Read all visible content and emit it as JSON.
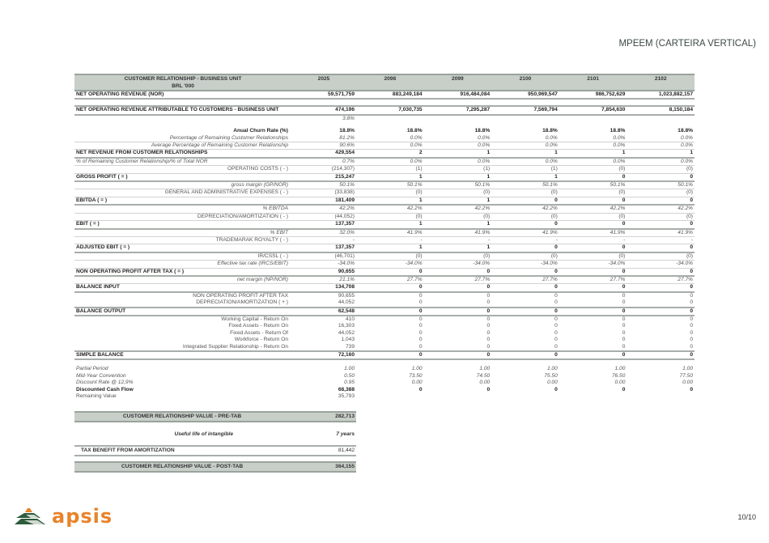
{
  "header": {
    "title": "MPEEM (CARTEIRA VERTICAL)",
    "page": "10/10"
  },
  "logo": {
    "text": "apsis",
    "colors": {
      "orange": "#e8832a",
      "green": "#2e5b3c"
    }
  },
  "table": {
    "head_label": "CUSTOMER RELATIONSHIP - BUSINESS UNIT",
    "head_sublabel": "BRL '000",
    "years": [
      "2025",
      "2098",
      "2099",
      "2100",
      "2101",
      "2102"
    ],
    "rows": [
      {
        "style": "bold",
        "label": "NET OPERATING REVENUE (NOR)",
        "values": [
          "59,571,759",
          "883,249,184",
          "916,484,084",
          "950,969,547",
          "986,752,629",
          "1,023,882,157"
        ]
      },
      {
        "style": "gap"
      },
      {
        "style": "bold topline",
        "label": "NET OPERATING REVENUE ATTRIBUTABLE TO CUSTOMERS - BUSINESS UNIT",
        "values": [
          "474,196",
          "7,030,735",
          "7,295,287",
          "7,569,794",
          "7,854,630",
          "8,150,184"
        ]
      },
      {
        "style": "ital",
        "label": "",
        "values": [
          "3.8%",
          "",
          "",
          "",
          "",
          ""
        ]
      },
      {
        "style": "gap"
      },
      {
        "style": "rbold",
        "label": "Anual Churn Rate (%)",
        "values": [
          "18.8%",
          "18.8%",
          "18.8%",
          "18.8%",
          "18.8%",
          "18.8%"
        ]
      },
      {
        "style": "subi",
        "label": "Percentage of Remaining Customer Relationships",
        "values": [
          "81.2%",
          "0.0%",
          "0.0%",
          "0.0%",
          "0.0%",
          "0.0%"
        ]
      },
      {
        "style": "subi",
        "label": "Average Percentage of Remaining Customer Relationship",
        "values": [
          "90.6%",
          "0.0%",
          "0.0%",
          "0.0%",
          "0.0%",
          "0.0%"
        ]
      },
      {
        "style": "bold",
        "label": "NET REVENUE FROM CUSTOMER RELATIONSHIPS",
        "values": [
          "429,554",
          "2",
          "1",
          "1",
          "1",
          "1"
        ]
      },
      {
        "style": "subi left",
        "label": "% of Remaining Customer Relationship/% of Total NOR",
        "values": [
          "0.7%",
          "0.0%",
          "0.0%",
          "0.0%",
          "0.0%",
          "0.0%"
        ]
      },
      {
        "style": "sub",
        "label": "OPERATING COSTS ( - )",
        "values": [
          "(214,307)",
          "(1)",
          "(1)",
          "(1)",
          "(0)",
          "(0)"
        ]
      },
      {
        "style": "bold",
        "label": "GROSS PROFIT ( = )",
        "values": [
          "215,247",
          "1",
          "1",
          "1",
          "0",
          "0"
        ]
      },
      {
        "style": "subi",
        "label": "gross margin (GP/NOR)",
        "values": [
          "50.1%",
          "50.1%",
          "50.1%",
          "50.1%",
          "50.1%",
          "50.1%"
        ]
      },
      {
        "style": "sub",
        "label": "GENERAL AND ADMINISTRATIVE EXPENSES ( - )",
        "values": [
          "(33,838)",
          "(0)",
          "(0)",
          "(0)",
          "(0)",
          "(0)"
        ]
      },
      {
        "style": "bold",
        "label": "EBITDA ( = )",
        "values": [
          "181,409",
          "1",
          "1",
          "0",
          "0",
          "0"
        ]
      },
      {
        "style": "subi",
        "label": "% EBITDA",
        "values": [
          "42.2%",
          "42.2%",
          "42.2%",
          "42.2%",
          "42.2%",
          "42.2%"
        ]
      },
      {
        "style": "sub",
        "label": "DEPRECIATION/AMORTIZATION ( - )",
        "values": [
          "(44,052)",
          "(0)",
          "(0)",
          "(0)",
          "(0)",
          "(0)"
        ]
      },
      {
        "style": "bold",
        "label": "EBIT ( = )",
        "values": [
          "137,357",
          "1",
          "1",
          "0",
          "0",
          "0"
        ]
      },
      {
        "style": "subi",
        "label": "% EBIT",
        "values": [
          "32.0%",
          "41.9%",
          "41.9%",
          "41.9%",
          "41.9%",
          "41.9%"
        ]
      },
      {
        "style": "sub",
        "label": "TRADEMARAK ROYALTY ( - )",
        "values": [
          "-",
          "-",
          "-",
          "-",
          "-",
          "-"
        ]
      },
      {
        "style": "bold",
        "label": "ADJUSTED EBIT ( = )",
        "values": [
          "137,357",
          "1",
          "1",
          "0",
          "0",
          "0"
        ]
      },
      {
        "style": "sub",
        "label": "IR/CSSL ( - )",
        "values": [
          "(46,701)",
          "(0)",
          "(0)",
          "(0)",
          "(0)",
          "(0)"
        ]
      },
      {
        "style": "subi",
        "label": "Effective tax rate (IRCS/EBIT)",
        "values": [
          "-34.0%",
          "-34.0%",
          "-34.0%",
          "-34.0%",
          "-34.0%",
          "-34.0%"
        ]
      },
      {
        "style": "bold",
        "label": "NON OPERATING PROFIT AFTER TAX ( = )",
        "values": [
          "90,655",
          "0",
          "0",
          "0",
          "0",
          "0"
        ]
      },
      {
        "style": "subi",
        "label": "net margin (NP/NOR)",
        "values": [
          "21.1%",
          "27.7%",
          "27.7%",
          "27.7%",
          "27.7%",
          "27.7%"
        ]
      },
      {
        "style": "bold",
        "label": "BALANCE INPUT",
        "values": [
          "134,708",
          "0",
          "0",
          "0",
          "0",
          "0"
        ]
      },
      {
        "style": "sub nb",
        "label": "NON OPERATING PROFIT AFTER TAX",
        "values": [
          "90,655",
          "0",
          "0",
          "0",
          "0",
          "0"
        ]
      },
      {
        "style": "sub nb",
        "label": "DEPRECIATION/AMORTIZATION ( + )",
        "values": [
          "44,052",
          "0",
          "0",
          "0",
          "0",
          "0"
        ]
      },
      {
        "style": "bold topline",
        "label": "BALANCE OUTPUT",
        "values": [
          "62,548",
          "0",
          "0",
          "0",
          "0",
          "0"
        ]
      },
      {
        "style": "sub nb",
        "label": "Working Capital - Return On",
        "values": [
          "410",
          "0",
          "0",
          "0",
          "0",
          "0"
        ]
      },
      {
        "style": "sub nb",
        "label": "Fixed Assets - Return On",
        "values": [
          "16,303",
          "0",
          "0",
          "0",
          "0",
          "0"
        ]
      },
      {
        "style": "sub nb",
        "label": "Fixed Assets - Return Of",
        "values": [
          "44,052",
          "0",
          "0",
          "0",
          "0",
          "0"
        ]
      },
      {
        "style": "sub nb",
        "label": "Workforce - Return On",
        "values": [
          "1,043",
          "0",
          "0",
          "0",
          "0",
          "0"
        ]
      },
      {
        "style": "sub nb",
        "label": "Integrated Supplier Relationship - Return On",
        "values": [
          "739",
          "0",
          "0",
          "0",
          "0",
          "0"
        ]
      },
      {
        "style": "bold topline",
        "label": "SIMPLE BALANCE",
        "values": [
          "72,160",
          "0",
          "0",
          "0",
          "0",
          "0"
        ]
      },
      {
        "style": "gap"
      },
      {
        "style": "ital",
        "label": "Partial Period",
        "values": [
          "1.00",
          "1.00",
          "1.00",
          "1.00",
          "1.00",
          "1.00"
        ]
      },
      {
        "style": "ital",
        "label": "Mid-Year Convention",
        "values": [
          "0.50",
          "73.50",
          "74.50",
          "75.50",
          "76.50",
          "77.50"
        ]
      },
      {
        "style": "ital",
        "label": "Discount Rate @ 12,9%",
        "values": [
          "0.95",
          "0.00",
          "0.00",
          "0.00",
          "0.00",
          "0.00"
        ]
      },
      {
        "style": "plain strong",
        "label": "Discounted Cash Flow",
        "values": [
          "68,388",
          "0",
          "0",
          "0",
          "0",
          "0"
        ]
      },
      {
        "style": "plain",
        "label": "Remaining Value",
        "values": [
          "35,793",
          "",
          "",
          "",
          "",
          ""
        ]
      }
    ]
  },
  "summary": {
    "pre_tab_label": "CUSTOMER RELATIONSHIP VALUE - PRE-TAB",
    "pre_tab_value": "282,713",
    "useful_life_label": "Useful life of intangible",
    "useful_life_value": "7 years",
    "tax_benefit_label": "TAX BENEFIT FROM AMORTIZATION",
    "tax_benefit_value": "81,442",
    "post_tab_label": "CUSTOMER RELATIONSHIP VALUE - POST-TAB",
    "post_tab_value": "364,155"
  }
}
